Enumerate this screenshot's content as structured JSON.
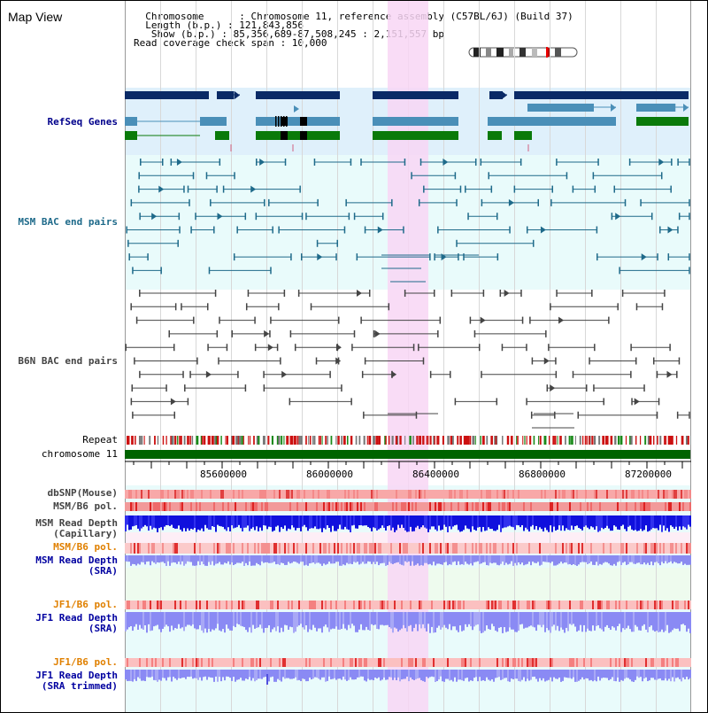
{
  "header": {
    "title": "Map View",
    "info_lines": [
      "  Chromosome      : Chromosome 11, reference assembly (C57BL/6J) (Build 37)",
      "  Length (b.p.) : 121,843,856",
      "   Show (b.p.) : 85,356,689-87,508,245 : 2,151,557 bp",
      "Read coverage check span : 10,000"
    ]
  },
  "tracks": {
    "refseq": {
      "label": "RefSeq Genes",
      "color": "#00008b"
    },
    "msm_bac": {
      "label": "MSM BAC end pairs",
      "color": "#1e6a8a"
    },
    "b6n_bac": {
      "label": "B6N BAC end pairs",
      "color": "#444444"
    },
    "repeat": {
      "label": "Repeat"
    },
    "chromosome": {
      "label": "chromosome 11",
      "color": "#006400"
    },
    "dbsnp": {
      "label": "dbSNP(Mouse)"
    },
    "msm_b6_pol": {
      "label": "MSM/B6 pol."
    },
    "msm_depth_cap": {
      "label": "MSM Read Depth\n(Capillary)"
    },
    "msm_b6_pol2": {
      "label": "MSM/B6 pol.",
      "color": "#e08000"
    },
    "msm_depth_sra": {
      "label": "MSM Read Depth\n(SRA)",
      "color": "#0000a0"
    },
    "jf1_b6_pol": {
      "label": "JF1/B6 pol.",
      "color": "#e08000"
    },
    "jf1_depth_sra": {
      "label": "JF1 Read Depth\n(SRA)",
      "color": "#0000a0"
    },
    "jf1_b6_pol2": {
      "label": "JF1/B6 pol.",
      "color": "#e08000"
    },
    "jf1_depth_trim": {
      "label": "JF1 Read Depth\n(SRA trimmed)",
      "color": "#0000a0"
    }
  },
  "axis": {
    "ticks": [
      "85600000",
      "86000000",
      "86400000",
      "86800000",
      "87200000"
    ]
  },
  "colors": {
    "refseq_bg": "#dff0fb",
    "bac_bg": "#e9fbfb",
    "highlight": "#f8d6f4",
    "gene_dark": "#0a2a66",
    "gene_mid": "#4a8fb8",
    "gene_green": "#0a7a0a"
  }
}
